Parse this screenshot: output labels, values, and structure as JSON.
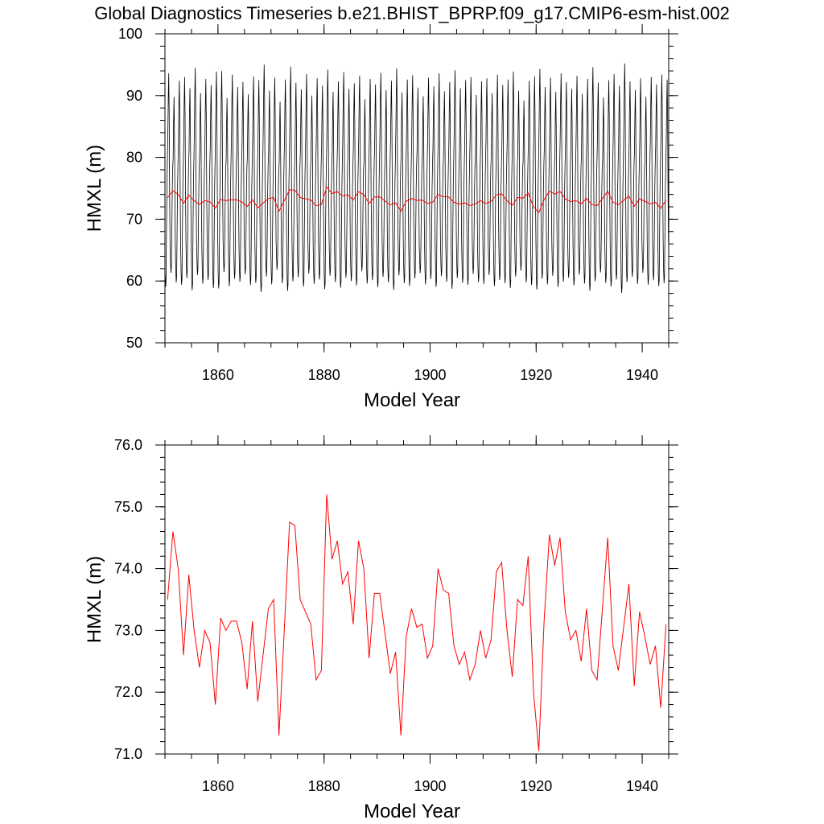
{
  "title": "Global Diagnostics Timeseries b.e21.BHIST_BPRP.f09_g17.CMIP6-esm-hist.002",
  "colors": {
    "monthly": "#000000",
    "annual": "#ff0000",
    "axis": "#000000"
  },
  "chart_data": [
    {
      "type": "line",
      "xlabel": "Model Year",
      "ylabel": "HMXL (m)",
      "xlim": [
        1850,
        1945
      ],
      "ylim": [
        50,
        100
      ],
      "xticks": [
        1860,
        1880,
        1900,
        1920,
        1940
      ],
      "xtick_labels": [
        "1860",
        "1880",
        "1900",
        "1920",
        "1940"
      ],
      "yticks": [
        50,
        60,
        70,
        80,
        90,
        100
      ],
      "ytick_labels": [
        "50",
        "60",
        "70",
        "80",
        "90",
        "100"
      ],
      "series": [
        {
          "role": "monthly",
          "color": "#000000",
          "monthly_climatology": [
            62,
            60,
            61,
            68,
            75,
            79,
            82,
            88,
            92,
            86,
            74,
            66
          ],
          "year_offset": [
            1.6,
            -2.2,
            0.4,
            1.0,
            -0.8,
            2.5,
            -1.6,
            0.7,
            -0.3,
            1.9,
            2.0,
            -2.4,
            1.4,
            -0.6,
            0.2,
            -1.8,
            1.1,
            0.5,
            3.0,
            -1.2,
            0.9,
            -3.0,
            0.6,
            2.7,
            0.1,
            -1.0,
            1.5,
            -2.0,
            0.8,
            -0.4,
            2.2,
            -1.4,
            0.3,
            1.8,
            -0.9,
            0.0,
            1.2,
            -2.6,
            0.7,
            -0.2,
            1.7,
            -1.1,
            0.4,
            2.4,
            -1.5,
            0.6,
            1.3,
            -0.7,
            -2.1,
            0.9,
            -0.5,
            1.6,
            -1.3,
            0.2,
            2.1,
            -0.8,
            0.5,
            1.0,
            -1.9,
            0.3,
            0.8,
            -1.6,
            1.4,
            -0.3,
            0.6,
            1.9,
            -1.2,
            -2.8,
            0.4,
            1.1,
            2.3,
            -0.6,
            0.9,
            -1.4,
            1.6,
            0.2,
            -0.9,
            1.2,
            -1.7,
            0.7,
            2.6,
            0.1,
            -2.3,
            0.5,
            1.5,
            -0.4,
            3.2,
            0.3,
            -1.1,
            0.8,
            -2.2,
            1.0,
            -0.2,
            1.4,
            0.6
          ]
        },
        {
          "role": "annual",
          "color": "#ff0000",
          "x": [
            1850,
            1851,
            1852,
            1853,
            1854,
            1855,
            1856,
            1857,
            1858,
            1859,
            1860,
            1861,
            1862,
            1863,
            1864,
            1865,
            1866,
            1867,
            1868,
            1869,
            1870,
            1871,
            1872,
            1873,
            1874,
            1875,
            1876,
            1877,
            1878,
            1879,
            1880,
            1881,
            1882,
            1883,
            1884,
            1885,
            1886,
            1887,
            1888,
            1889,
            1890,
            1891,
            1892,
            1893,
            1894,
            1895,
            1896,
            1897,
            1898,
            1899,
            1900,
            1901,
            1902,
            1903,
            1904,
            1905,
            1906,
            1907,
            1908,
            1909,
            1910,
            1911,
            1912,
            1913,
            1914,
            1915,
            1916,
            1917,
            1918,
            1919,
            1920,
            1921,
            1922,
            1923,
            1924,
            1925,
            1926,
            1927,
            1928,
            1929,
            1930,
            1931,
            1932,
            1933,
            1934,
            1935,
            1936,
            1937,
            1938,
            1939,
            1940,
            1941,
            1942,
            1943,
            1944
          ],
          "values": [
            73.5,
            74.6,
            74.0,
            72.6,
            73.9,
            73.0,
            72.4,
            73.0,
            72.8,
            71.8,
            73.2,
            73.0,
            73.15,
            73.15,
            72.8,
            72.05,
            73.15,
            71.85,
            72.6,
            73.35,
            73.5,
            71.3,
            73.0,
            74.75,
            74.7,
            73.5,
            73.3,
            73.1,
            72.2,
            72.35,
            75.2,
            74.15,
            74.45,
            73.75,
            73.95,
            73.1,
            74.45,
            74.0,
            72.55,
            73.6,
            73.6,
            72.95,
            72.3,
            72.65,
            71.3,
            72.9,
            73.35,
            73.05,
            73.1,
            72.55,
            72.75,
            74.0,
            73.65,
            73.6,
            72.75,
            72.45,
            72.65,
            72.2,
            72.45,
            73.0,
            72.55,
            72.85,
            73.95,
            74.1,
            73.0,
            72.25,
            73.5,
            73.4,
            74.2,
            72.0,
            71.05,
            73.15,
            74.55,
            74.05,
            74.5,
            73.3,
            72.85,
            73.0,
            72.5,
            73.35,
            72.35,
            72.2,
            73.35,
            74.5,
            72.75,
            72.35,
            73.05,
            73.75,
            72.1,
            73.3,
            72.9,
            72.45,
            72.75,
            71.75,
            73.1
          ]
        }
      ]
    },
    {
      "type": "line",
      "xlabel": "Model Year",
      "ylabel": "HMXL (m)",
      "xlim": [
        1850,
        1945
      ],
      "ylim": [
        71,
        76
      ],
      "xticks": [
        1860,
        1880,
        1900,
        1920,
        1940
      ],
      "xtick_labels": [
        "1860",
        "1880",
        "1900",
        "1920",
        "1940"
      ],
      "yticks": [
        71,
        72,
        73,
        74,
        75,
        76
      ],
      "ytick_labels": [
        "71.0",
        "72.0",
        "73.0",
        "74.0",
        "75.0",
        "76.0"
      ],
      "series": [
        {
          "role": "annual",
          "color": "#ff0000",
          "source": "same as panel 1 annual series"
        }
      ]
    }
  ]
}
